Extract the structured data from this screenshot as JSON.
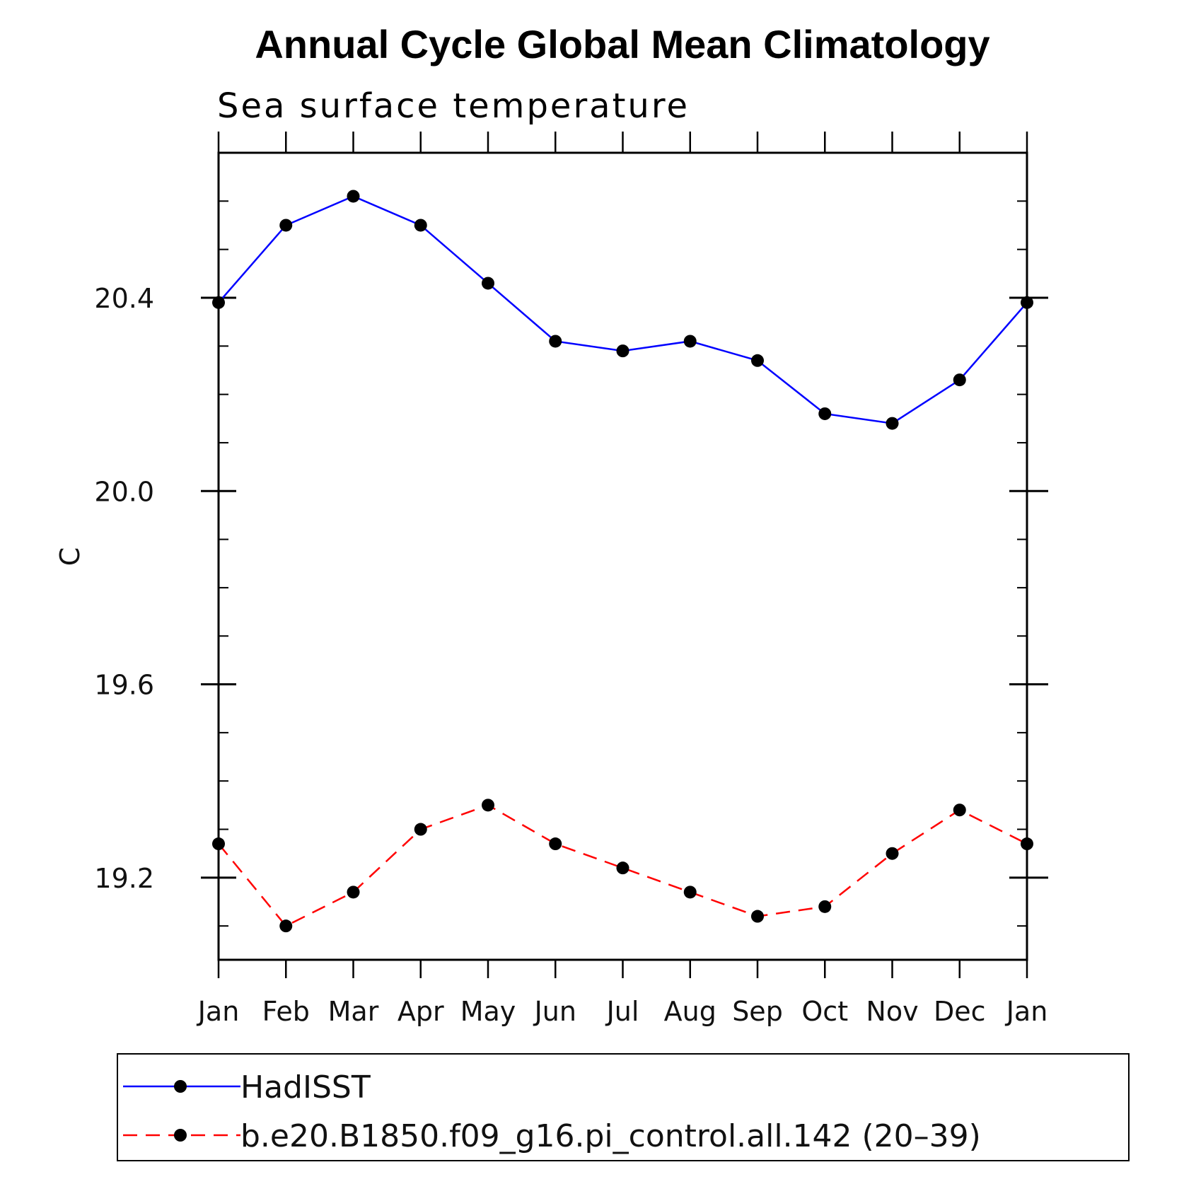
{
  "chart_data": {
    "type": "line",
    "title": "Annual Cycle Global Mean Climatology",
    "subtitle": "Sea surface temperature",
    "ylabel": "C",
    "xlabel": "",
    "categories": [
      "Jan",
      "Feb",
      "Mar",
      "Apr",
      "May",
      "Jun",
      "Jul",
      "Aug",
      "Sep",
      "Oct",
      "Nov",
      "Dec",
      "Jan"
    ],
    "ylim": [
      19.03,
      20.7
    ],
    "yticks": [
      {
        "value": 19.2,
        "label": "19.2"
      },
      {
        "value": 19.6,
        "label": "19.6"
      },
      {
        "value": 20.0,
        "label": "20.0"
      },
      {
        "value": 20.4,
        "label": "20.4"
      }
    ],
    "grid": false,
    "legend_position": "bottom",
    "series": [
      {
        "name": "HadISST",
        "color": "#0000ff",
        "dash": "solid",
        "marker": "filled-circle",
        "values": [
          20.39,
          20.55,
          20.61,
          20.55,
          20.43,
          20.31,
          20.29,
          20.31,
          20.27,
          20.16,
          20.14,
          20.23,
          20.39
        ]
      },
      {
        "name": "b.e20.B1850.f09_g16.pi_control.all.142 (20–39)",
        "color": "#ff0000",
        "dash": "dashed",
        "marker": "filled-circle",
        "values": [
          19.27,
          19.1,
          19.17,
          19.3,
          19.35,
          19.27,
          19.22,
          19.17,
          19.12,
          19.14,
          19.25,
          19.34,
          19.27
        ]
      }
    ]
  }
}
